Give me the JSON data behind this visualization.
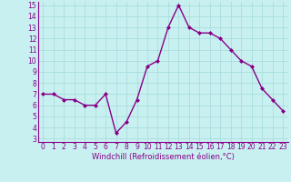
{
  "x": [
    0,
    1,
    2,
    3,
    4,
    5,
    6,
    7,
    8,
    9,
    10,
    11,
    12,
    13,
    14,
    15,
    16,
    17,
    18,
    19,
    20,
    21,
    22,
    23
  ],
  "y": [
    7,
    7,
    6.5,
    6.5,
    6,
    6,
    7,
    3.5,
    4.5,
    6.5,
    9.5,
    10,
    13,
    15,
    13,
    12.5,
    12.5,
    12,
    11,
    10,
    9.5,
    7.5,
    6.5,
    5.5
  ],
  "line_color": "#880088",
  "marker": "D",
  "marker_size": 2,
  "line_width": 1.0,
  "bg_color": "#c8f0f0",
  "grid_color": "#aadddd",
  "xlabel": "Windchill (Refroidissement éolien,°C)",
  "xlabel_color": "#880088",
  "tick_color": "#880088",
  "ylim": [
    3,
    15
  ],
  "xlim": [
    -0.5,
    23.5
  ],
  "yticks": [
    3,
    4,
    5,
    6,
    7,
    8,
    9,
    10,
    11,
    12,
    13,
    14,
    15
  ],
  "xticks": [
    0,
    1,
    2,
    3,
    4,
    5,
    6,
    7,
    8,
    9,
    10,
    11,
    12,
    13,
    14,
    15,
    16,
    17,
    18,
    19,
    20,
    21,
    22,
    23
  ],
  "tick_fontsize": 5.5,
  "xlabel_fontsize": 6.0
}
